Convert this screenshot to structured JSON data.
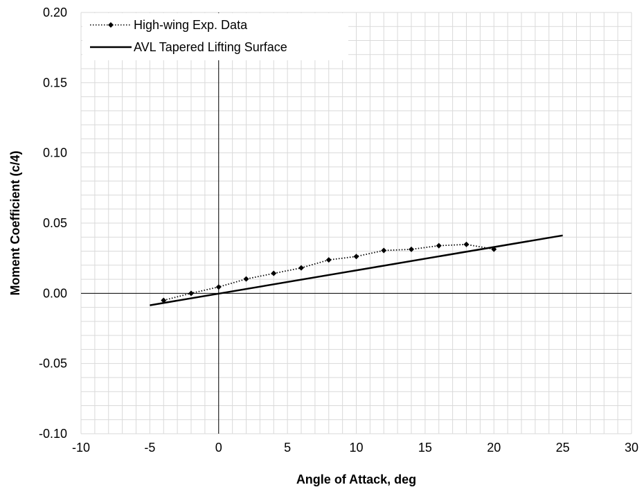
{
  "chart_data": {
    "type": "line",
    "title": "",
    "xlabel": "Angle of Attack, deg",
    "ylabel": "Moment Coefficient (c/4)",
    "xlim": [
      -10,
      30
    ],
    "ylim": [
      -0.1,
      0.2
    ],
    "x_major_ticks": [
      -10,
      -5,
      0,
      5,
      10,
      15,
      20,
      25,
      30
    ],
    "x_tick_labels": [
      "-10",
      "-5",
      "0",
      "5",
      "10",
      "15",
      "20",
      "25",
      "30"
    ],
    "y_major_ticks": [
      -0.1,
      -0.05,
      0,
      0.05,
      0.1,
      0.15,
      0.2
    ],
    "y_tick_labels": [
      "-0.10",
      "-0.05",
      "0.00",
      "0.05",
      "0.10",
      "0.15",
      "0.20"
    ],
    "x_minor_step": 1,
    "y_minor_step": 0.01,
    "grid": true,
    "legend_position": "top-left",
    "colors": {
      "grid": "#d9d9d9",
      "axis": "#000000",
      "series": "#000000"
    },
    "series": [
      {
        "name": "High-wing Exp. Data",
        "style": "dotted",
        "marker": "diamond",
        "x": [
          -4,
          -2,
          0,
          2,
          4,
          6,
          8,
          10,
          12,
          14,
          16,
          18,
          20
        ],
        "y": [
          -0.005,
          0.0,
          0.0045,
          0.0102,
          0.0142,
          0.0181,
          0.0238,
          0.0262,
          0.0305,
          0.0313,
          0.0339,
          0.0348,
          0.0314
        ]
      },
      {
        "name": "AVL Tapered Lifting Surface",
        "style": "solid",
        "marker": "none",
        "x": [
          -5,
          25
        ],
        "y": [
          -0.0085,
          0.0412
        ]
      }
    ]
  }
}
